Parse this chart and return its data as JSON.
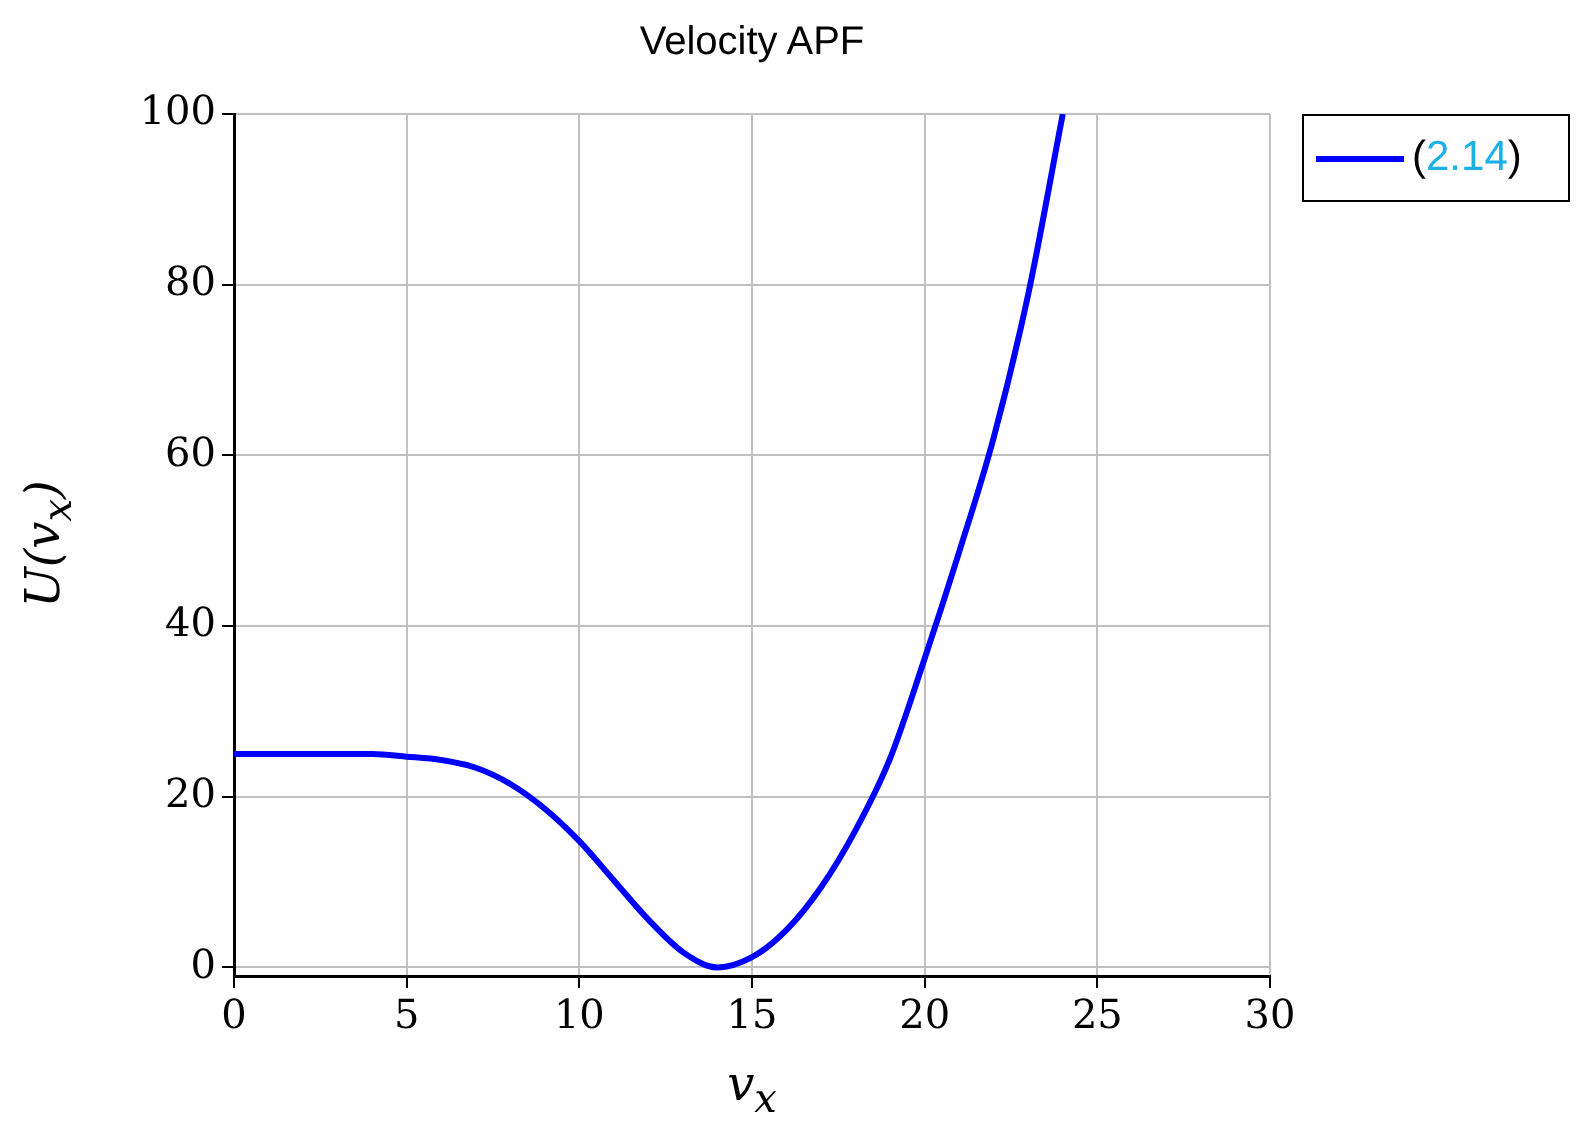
{
  "chart_data": {
    "type": "line",
    "title": "Velocity APF",
    "xlabel": "v$_{x}$",
    "ylabel": "U(v$_{x}$)",
    "x": [
      0,
      2,
      4,
      5,
      6,
      7,
      8,
      9,
      10,
      11,
      12,
      13,
      14,
      15,
      16,
      17,
      18,
      19,
      20,
      21,
      22,
      23,
      24
    ],
    "series": [
      {
        "name": "(2.14)",
        "color": "#0000ff",
        "values": [
          25,
          25,
          25,
          24.7,
          24.3,
          23.4,
          21.5,
          18.6,
          14.8,
          10.2,
          5.6,
          1.8,
          0,
          1.2,
          4.4,
          9.4,
          16.1,
          24.5,
          36.2,
          48.7,
          62.1,
          78.9,
          100
        ]
      }
    ],
    "xlim": [
      0,
      30
    ],
    "xticks": [
      0,
      5,
      10,
      15,
      20,
      25,
      30
    ],
    "ylim": [
      -1,
      100
    ],
    "yticks": [
      0,
      20,
      40,
      60,
      80,
      100
    ],
    "grid": true,
    "legend": "top right",
    "marker": "none",
    "line_style": "solid"
  }
}
